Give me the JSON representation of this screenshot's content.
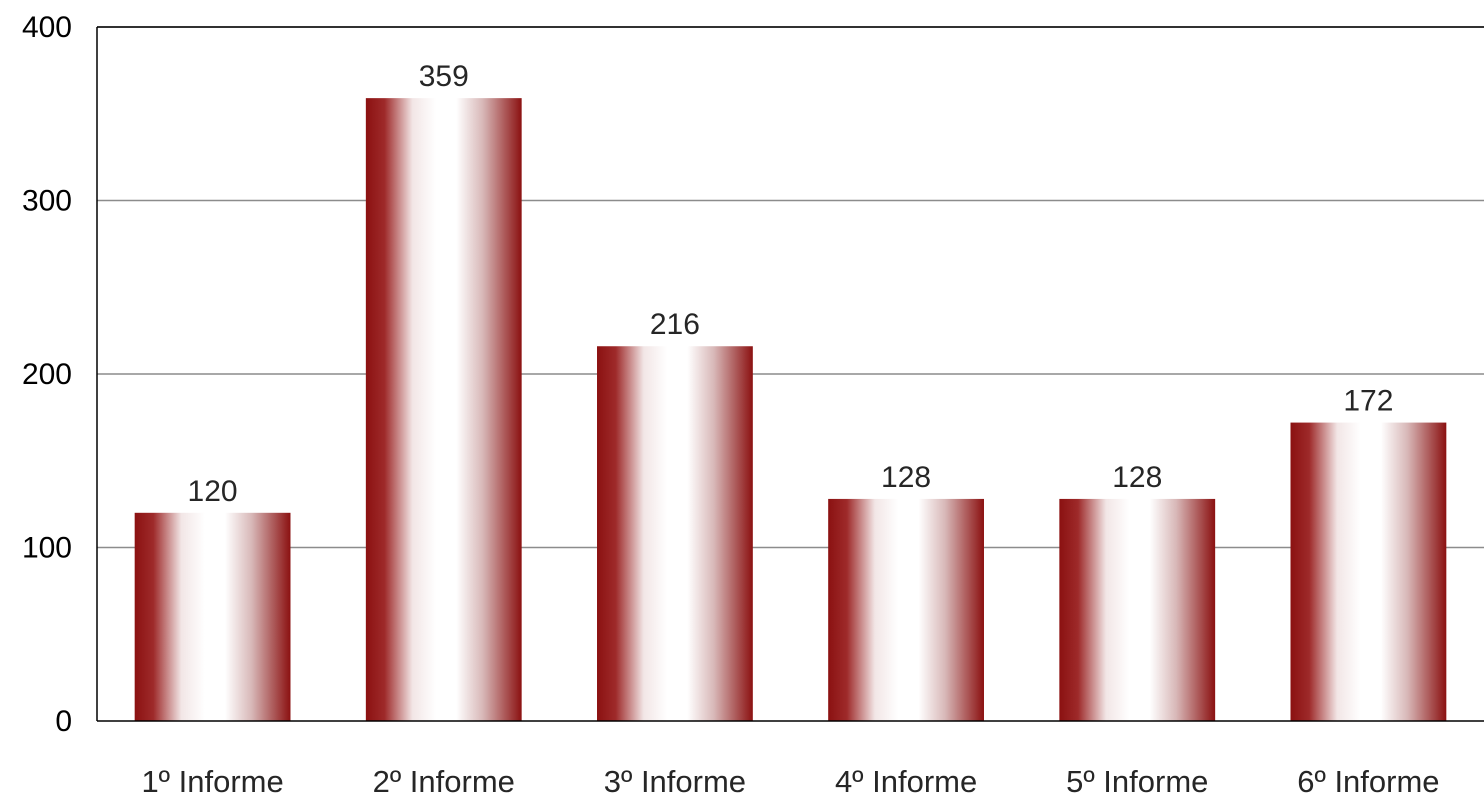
{
  "chart_data": {
    "type": "bar",
    "title": "",
    "xlabel": "",
    "ylabel": "",
    "categories": [
      "1º Informe",
      "2º Informe",
      "3º Informe",
      "4º Informe",
      "5º Informe",
      "6º Informe"
    ],
    "values": [
      120,
      359,
      216,
      128,
      128,
      172
    ],
    "data_labels": [
      "120",
      "359",
      "216",
      "128",
      "128",
      "172"
    ],
    "ylim": [
      0,
      400
    ],
    "yticks": [
      0,
      100,
      200,
      300,
      400
    ],
    "ytick_labels": [
      "0",
      "100",
      "200",
      "300",
      "400"
    ],
    "grid": true,
    "legend": "none",
    "colors": {
      "bar_edge": "#8b1111",
      "bar_center": "#ffffff",
      "gridline": "#8c8c8c",
      "axis": "#000000"
    }
  }
}
